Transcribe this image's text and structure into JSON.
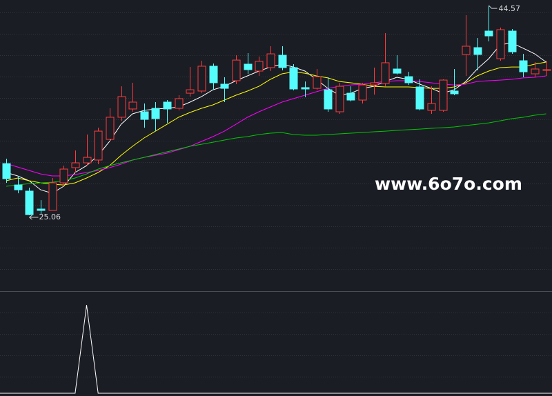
{
  "chart_data": [
    {
      "type": "candlestick",
      "open": [
        29.87,
        27.88,
        27.31,
        25.64,
        25.51,
        28.08,
        29.49,
        29.94,
        30.2,
        32.12,
        34.18,
        34.95,
        34.69,
        35.01,
        35.59,
        35.01,
        36.42,
        36.62,
        38.93,
        37.26,
        37.58,
        39.12,
        38.48,
        38.8,
        39.95,
        38.8,
        36.94,
        36.87,
        36.74,
        34.69,
        36.42,
        35.78,
        37.19,
        37.32,
        38.67,
        37.96,
        37.0,
        34.82,
        34.82,
        36.62,
        40.02,
        40.66,
        42.2,
        39.63,
        42.2,
        39.44,
        38.22,
        38.54
      ],
      "high": [
        30.32,
        28.72,
        27.63,
        26.47,
        28.53,
        29.68,
        31.09,
        32.57,
        33.21,
        35.01,
        37.06,
        37.39,
        35.46,
        35.59,
        35.78,
        36.23,
        38.86,
        39.44,
        39.18,
        37.9,
        39.95,
        40.15,
        39.83,
        40.79,
        40.79,
        39.12,
        37.51,
        38.67,
        37.9,
        37.39,
        37.06,
        37.39,
        38.8,
        42.01,
        39.95,
        38.41,
        37.71,
        37.06,
        37.71,
        38.67,
        43.68,
        41.56,
        44.57,
        42.52,
        42.39,
        40.08,
        39.31,
        39.44
      ],
      "low": [
        28.08,
        27.11,
        25.06,
        25.19,
        25.51,
        27.76,
        29.04,
        29.68,
        29.81,
        31.93,
        33.85,
        34.69,
        33.21,
        32.89,
        33.66,
        34.82,
        36.1,
        36.42,
        36.74,
        35.59,
        37.26,
        38.22,
        38.03,
        38.48,
        38.54,
        36.68,
        36.04,
        36.74,
        34.69,
        34.5,
        35.65,
        35.46,
        36.29,
        37.06,
        38.16,
        37.19,
        34.82,
        34.5,
        34.69,
        36.23,
        38.03,
        38.54,
        41.24,
        39.44,
        40.08,
        37.9,
        37.9,
        38.03
      ],
      "close": [
        28.46,
        27.43,
        25.12,
        25.51,
        28.08,
        29.36,
        29.94,
        30.45,
        32.89,
        34.18,
        36.1,
        35.59,
        33.98,
        34.05,
        34.95,
        35.91,
        36.74,
        38.93,
        37.39,
        36.87,
        39.5,
        38.61,
        39.38,
        40.08,
        38.8,
        36.81,
        36.81,
        37.96,
        34.95,
        37.06,
        35.78,
        37.19,
        37.39,
        39.25,
        38.28,
        37.39,
        34.95,
        35.46,
        37.64,
        36.36,
        40.79,
        40.02,
        41.75,
        42.33,
        40.27,
        38.41,
        38.67,
        38.61
      ],
      "up_color": "#ff3c3c",
      "down_color": "#54fcfc",
      "ylim": [
        18.13,
        45.09
      ],
      "grid": true,
      "series": [
        {
          "color": "#ffffff",
          "values": [
            29.04,
            28.72,
            28.27,
            27.43,
            27.11,
            27.76,
            29.04,
            29.68,
            30.64,
            31.93,
            33.53,
            34.5,
            34.82,
            34.95,
            35.01,
            35.14,
            35.59,
            36.1,
            36.74,
            37.06,
            37.58,
            38.03,
            38.48,
            38.86,
            39.12,
            38.86,
            38.48,
            37.71,
            36.87,
            36.23,
            36.42,
            36.87,
            37.06,
            37.51,
            37.9,
            37.71,
            37.26,
            36.87,
            36.42,
            36.74,
            37.51,
            38.67,
            39.63,
            40.92,
            41.11,
            40.6,
            40.08,
            39.31
          ]
        },
        {
          "color": "#ffff00",
          "values": [
            28.27,
            28.53,
            28.27,
            28.08,
            27.95,
            27.88,
            28.08,
            28.53,
            29.04,
            29.68,
            30.64,
            31.48,
            32.25,
            32.89,
            33.53,
            34.18,
            34.63,
            35.01,
            35.33,
            35.78,
            36.23,
            36.62,
            37.06,
            37.71,
            38.22,
            38.41,
            38.28,
            38.03,
            37.84,
            37.51,
            37.39,
            37.26,
            37.06,
            37.0,
            37.0,
            37.0,
            36.94,
            36.87,
            36.87,
            37.0,
            37.39,
            38.03,
            38.48,
            38.8,
            38.86,
            38.86,
            39.12,
            39.31
          ]
        },
        {
          "color": "#ff00ff",
          "values": [
            29.87,
            29.55,
            29.23,
            28.91,
            28.72,
            28.72,
            28.85,
            29.04,
            29.23,
            29.49,
            29.81,
            30.2,
            30.45,
            30.64,
            30.84,
            31.16,
            31.48,
            31.93,
            32.38,
            32.89,
            33.53,
            34.18,
            34.69,
            35.14,
            35.59,
            35.91,
            36.23,
            36.55,
            36.87,
            37.06,
            37.19,
            37.26,
            37.39,
            37.51,
            37.58,
            37.58,
            37.51,
            37.39,
            37.26,
            37.19,
            37.26,
            37.51,
            37.58,
            37.64,
            37.71,
            37.84,
            37.9,
            38.03
          ]
        },
        {
          "color": "#00c800",
          "values": [
            27.76,
            27.88,
            28.01,
            28.08,
            28.14,
            28.27,
            28.53,
            28.91,
            29.36,
            29.68,
            29.94,
            30.2,
            30.45,
            30.71,
            30.97,
            31.22,
            31.48,
            31.67,
            31.86,
            32.06,
            32.25,
            32.38,
            32.57,
            32.7,
            32.76,
            32.57,
            32.51,
            32.51,
            32.57,
            32.64,
            32.7,
            32.76,
            32.83,
            32.89,
            32.96,
            33.02,
            33.08,
            33.15,
            33.21,
            33.28,
            33.41,
            33.53,
            33.66,
            33.85,
            34.05,
            34.18,
            34.37,
            34.5
          ]
        }
      ],
      "watermark": "www.6o7o.com"
    },
    {
      "type": "line",
      "color": "#ffffff",
      "values": [
        0,
        0,
        0,
        0,
        0,
        0,
        0,
        1,
        0,
        0,
        0,
        0,
        0,
        0,
        0,
        0,
        0,
        0,
        0,
        0,
        0,
        0,
        0,
        0,
        0,
        0,
        0,
        0,
        0,
        0,
        0,
        0,
        0,
        0,
        0,
        0,
        0,
        0,
        0,
        0,
        0,
        0,
        0,
        0,
        0,
        0,
        0,
        0
      ],
      "ylim": [
        0,
        1.15
      ],
      "grid": true
    }
  ]
}
